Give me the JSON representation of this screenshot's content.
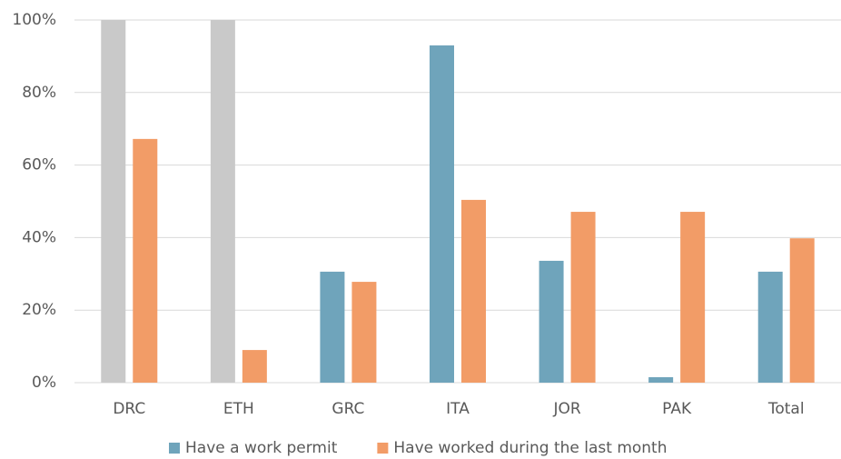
{
  "chart_data": {
    "type": "bar",
    "categories": [
      "DRC",
      "ETH",
      "GRC",
      "ITA",
      "JOR",
      "PAK",
      "Total"
    ],
    "series": [
      {
        "name": "Have a work permit",
        "color": "#6fa4bb",
        "colors": [
          "#c9c9c9",
          "#c9c9c9",
          "#6fa4bb",
          "#6fa4bb",
          "#6fa4bb",
          "#6fa4bb",
          "#6fa4bb"
        ],
        "values": [
          100,
          100,
          30.6,
          93,
          33.6,
          1.5,
          30.6
        ]
      },
      {
        "name": "Have worked during the last month",
        "color": "#f29c67",
        "values": [
          67.2,
          9,
          27.8,
          50.4,
          47.1,
          47.1,
          39.8
        ]
      }
    ],
    "ylim": [
      0,
      100
    ],
    "yticks": [
      {
        "value": 0,
        "label": "0%"
      },
      {
        "value": 20,
        "label": "20%"
      },
      {
        "value": 40,
        "label": "40%"
      },
      {
        "value": 60,
        "label": "60%"
      },
      {
        "value": 80,
        "label": "80%"
      },
      {
        "value": 100,
        "label": "100%"
      }
    ],
    "grid": true,
    "legend": "bottom"
  }
}
